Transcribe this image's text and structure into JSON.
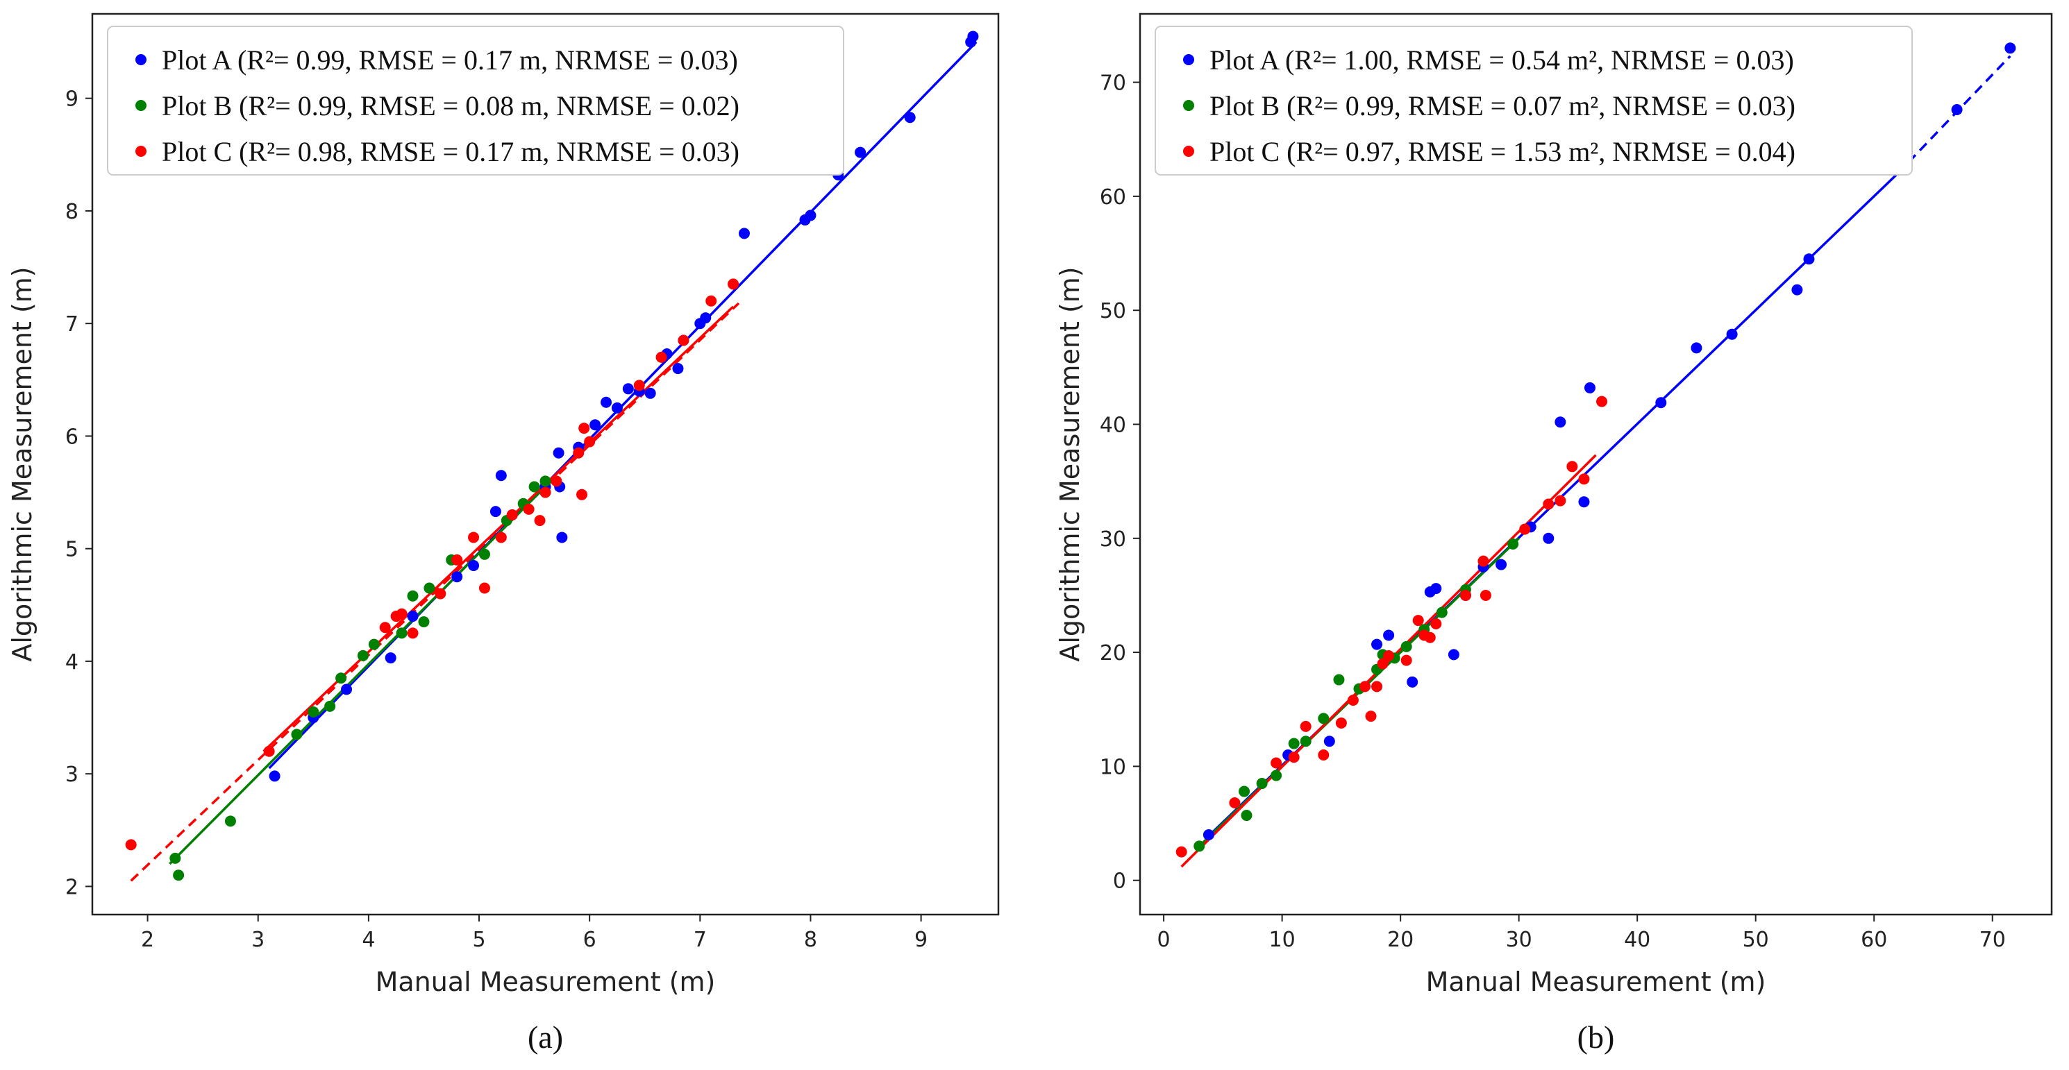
{
  "chart_data": [
    {
      "type": "scatter",
      "caption": "(a)",
      "xlabel": "Manual Measurement (m)",
      "ylabel": "Algorithmic Measurement (m)",
      "xlim": [
        1.5,
        9.7
      ],
      "ylim": [
        1.75,
        9.75
      ],
      "xticks": [
        2,
        3,
        4,
        5,
        6,
        7,
        8,
        9
      ],
      "yticks": [
        2,
        3,
        4,
        5,
        6,
        7,
        8,
        9
      ],
      "series": [
        {
          "name": "Plot A",
          "legend": "Plot A (R²= 0.99, RMSE = 0.17 m, NRMSE = 0.03)",
          "color": "#0000ff",
          "fit": {
            "x": [
              3.1,
              9.5
            ],
            "y": [
              3.05,
              9.5
            ],
            "style": "solid"
          },
          "points": [
            [
              3.15,
              2.98
            ],
            [
              3.5,
              3.5
            ],
            [
              3.8,
              3.75
            ],
            [
              4.2,
              4.03
            ],
            [
              4.4,
              4.4
            ],
            [
              4.8,
              4.75
            ],
            [
              4.95,
              4.85
            ],
            [
              5.15,
              5.33
            ],
            [
              5.2,
              5.65
            ],
            [
              5.3,
              5.3
            ],
            [
              5.6,
              5.55
            ],
            [
              5.72,
              5.85
            ],
            [
              5.73,
              5.55
            ],
            [
              5.75,
              5.1
            ],
            [
              5.9,
              5.9
            ],
            [
              6.05,
              6.1
            ],
            [
              6.15,
              6.3
            ],
            [
              6.25,
              6.25
            ],
            [
              6.35,
              6.42
            ],
            [
              6.45,
              6.4
            ],
            [
              6.55,
              6.38
            ],
            [
              6.7,
              6.73
            ],
            [
              6.8,
              6.6
            ],
            [
              6.85,
              6.85
            ],
            [
              7.0,
              7.0
            ],
            [
              7.05,
              7.05
            ],
            [
              7.4,
              7.8
            ],
            [
              7.95,
              7.92
            ],
            [
              8.0,
              7.96
            ],
            [
              8.25,
              8.32
            ],
            [
              8.45,
              8.52
            ],
            [
              8.9,
              8.83
            ],
            [
              9.45,
              9.5
            ],
            [
              9.47,
              9.55
            ]
          ]
        },
        {
          "name": "Plot B",
          "legend": "Plot B (R²= 0.99, RMSE = 0.08 m, NRMSE = 0.02)",
          "color": "#008000",
          "fit": {
            "x": [
              2.2,
              5.7
            ],
            "y": [
              2.2,
              5.65
            ],
            "style": "solid"
          },
          "points": [
            [
              2.25,
              2.25
            ],
            [
              2.28,
              2.1
            ],
            [
              2.75,
              2.58
            ],
            [
              3.35,
              3.35
            ],
            [
              3.5,
              3.55
            ],
            [
              3.65,
              3.6
            ],
            [
              3.75,
              3.85
            ],
            [
              3.95,
              4.05
            ],
            [
              4.05,
              4.15
            ],
            [
              4.3,
              4.25
            ],
            [
              4.4,
              4.58
            ],
            [
              4.5,
              4.35
            ],
            [
              4.55,
              4.65
            ],
            [
              4.75,
              4.9
            ],
            [
              5.05,
              4.95
            ],
            [
              5.25,
              5.25
            ],
            [
              5.4,
              5.4
            ],
            [
              5.5,
              5.55
            ],
            [
              5.6,
              5.6
            ]
          ]
        },
        {
          "name": "Plot C",
          "legend": "Plot C (R²= 0.98, RMSE = 0.17 m, NRMSE = 0.03)",
          "color": "#ff0000",
          "fit": {
            "x": [
              3.05,
              7.3
            ],
            "y": [
              3.2,
              7.15
            ],
            "style": "solid"
          },
          "fit_extension": {
            "x": [
              1.85,
              7.35
            ],
            "y": [
              2.05,
              7.18
            ],
            "style": "dashed"
          },
          "points": [
            [
              1.85,
              2.37
            ],
            [
              3.1,
              3.2
            ],
            [
              4.15,
              4.3
            ],
            [
              4.25,
              4.4
            ],
            [
              4.3,
              4.42
            ],
            [
              4.4,
              4.25
            ],
            [
              4.65,
              4.6
            ],
            [
              4.8,
              4.9
            ],
            [
              4.95,
              5.1
            ],
            [
              5.05,
              4.65
            ],
            [
              5.2,
              5.1
            ],
            [
              5.3,
              5.3
            ],
            [
              5.45,
              5.35
            ],
            [
              5.55,
              5.25
            ],
            [
              5.6,
              5.5
            ],
            [
              5.7,
              5.6
            ],
            [
              5.9,
              5.85
            ],
            [
              5.93,
              5.48
            ],
            [
              5.95,
              6.07
            ],
            [
              6.0,
              5.95
            ],
            [
              6.45,
              6.45
            ],
            [
              6.65,
              6.7
            ],
            [
              6.85,
              6.85
            ],
            [
              7.1,
              7.2
            ],
            [
              7.3,
              7.35
            ]
          ]
        }
      ]
    },
    {
      "type": "scatter",
      "caption": "(b)",
      "xlabel": "Manual Measurement (m)",
      "ylabel": "Algorithmic Measurement (m)",
      "xlim": [
        -2,
        75
      ],
      "ylim": [
        -3,
        76
      ],
      "xticks": [
        0,
        10,
        20,
        30,
        40,
        50,
        60,
        70
      ],
      "yticks": [
        0,
        10,
        20,
        30,
        40,
        50,
        60,
        70
      ],
      "series": [
        {
          "name": "Plot A",
          "legend": "Plot A (R²= 1.00, RMSE = 0.54 m², NRMSE = 0.03)",
          "color": "#0000ff",
          "fit": {
            "x": [
              3.5,
              62
            ],
            "y": [
              3.6,
              62
            ],
            "style": "solid"
          },
          "fit_extension": {
            "x": [
              62,
              71.5
            ],
            "y": [
              62,
              72.3
            ],
            "style": "dashed"
          },
          "points": [
            [
              3.8,
              4.0
            ],
            [
              10.5,
              11.0
            ],
            [
              14,
              12.2
            ],
            [
              18,
              20.7
            ],
            [
              19,
              21.5
            ],
            [
              21,
              17.4
            ],
            [
              22.5,
              25.3
            ],
            [
              23,
              25.6
            ],
            [
              24.5,
              19.8
            ],
            [
              25.5,
              25.0
            ],
            [
              27,
              27.5
            ],
            [
              28.5,
              27.7
            ],
            [
              31,
              31.0
            ],
            [
              32.5,
              30.0
            ],
            [
              33.5,
              40.2
            ],
            [
              35.5,
              33.2
            ],
            [
              36,
              43.2
            ],
            [
              42,
              41.9
            ],
            [
              45,
              46.7
            ],
            [
              48,
              47.9
            ],
            [
              53.5,
              51.8
            ],
            [
              54.5,
              54.5
            ],
            [
              67,
              67.6
            ],
            [
              71.5,
              73.0
            ]
          ]
        },
        {
          "name": "Plot B",
          "legend": "Plot B (R²= 0.99, RMSE = 0.07 m², NRMSE = 0.03)",
          "color": "#008000",
          "fit": {
            "x": [
              3,
              30
            ],
            "y": [
              3,
              30
            ],
            "style": "solid"
          },
          "points": [
            [
              3,
              3.0
            ],
            [
              6.8,
              7.8
            ],
            [
              7,
              5.7
            ],
            [
              8.3,
              8.5
            ],
            [
              9.5,
              9.2
            ],
            [
              11,
              12
            ],
            [
              12,
              12.2
            ],
            [
              13.5,
              14.2
            ],
            [
              14.8,
              17.6
            ],
            [
              16.5,
              16.8
            ],
            [
              18,
              18.5
            ],
            [
              18.5,
              19.8
            ],
            [
              19.5,
              19.5
            ],
            [
              20.5,
              20.5
            ],
            [
              22,
              22.0
            ],
            [
              23.5,
              23.5
            ],
            [
              25.5,
              25.5
            ],
            [
              29.5,
              29.5
            ]
          ]
        },
        {
          "name": "Plot C",
          "legend": "Plot C (R²= 0.97, RMSE = 1.53 m², NRMSE = 0.04)",
          "color": "#ff0000",
          "fit": {
            "x": [
              1.5,
              36.5
            ],
            "y": [
              1.2,
              37.3
            ],
            "style": "solid"
          },
          "points": [
            [
              1.5,
              2.5
            ],
            [
              6,
              6.8
            ],
            [
              9.5,
              10.3
            ],
            [
              11,
              10.8
            ],
            [
              12,
              13.5
            ],
            [
              13.5,
              11.0
            ],
            [
              15,
              13.8
            ],
            [
              16,
              15.8
            ],
            [
              17,
              17.0
            ],
            [
              17.5,
              14.4
            ],
            [
              18,
              17.0
            ],
            [
              18.5,
              19.0
            ],
            [
              19,
              19.7
            ],
            [
              20.5,
              19.3
            ],
            [
              21.5,
              22.8
            ],
            [
              22,
              21.5
            ],
            [
              22.5,
              21.3
            ],
            [
              23,
              22.5
            ],
            [
              25.5,
              25.0
            ],
            [
              27,
              28.0
            ],
            [
              27.2,
              25.0
            ],
            [
              30.5,
              30.8
            ],
            [
              32.5,
              33.0
            ],
            [
              33.5,
              33.3
            ],
            [
              34.5,
              36.3
            ],
            [
              35.5,
              35.2
            ],
            [
              37,
              42.0
            ]
          ]
        }
      ]
    }
  ]
}
